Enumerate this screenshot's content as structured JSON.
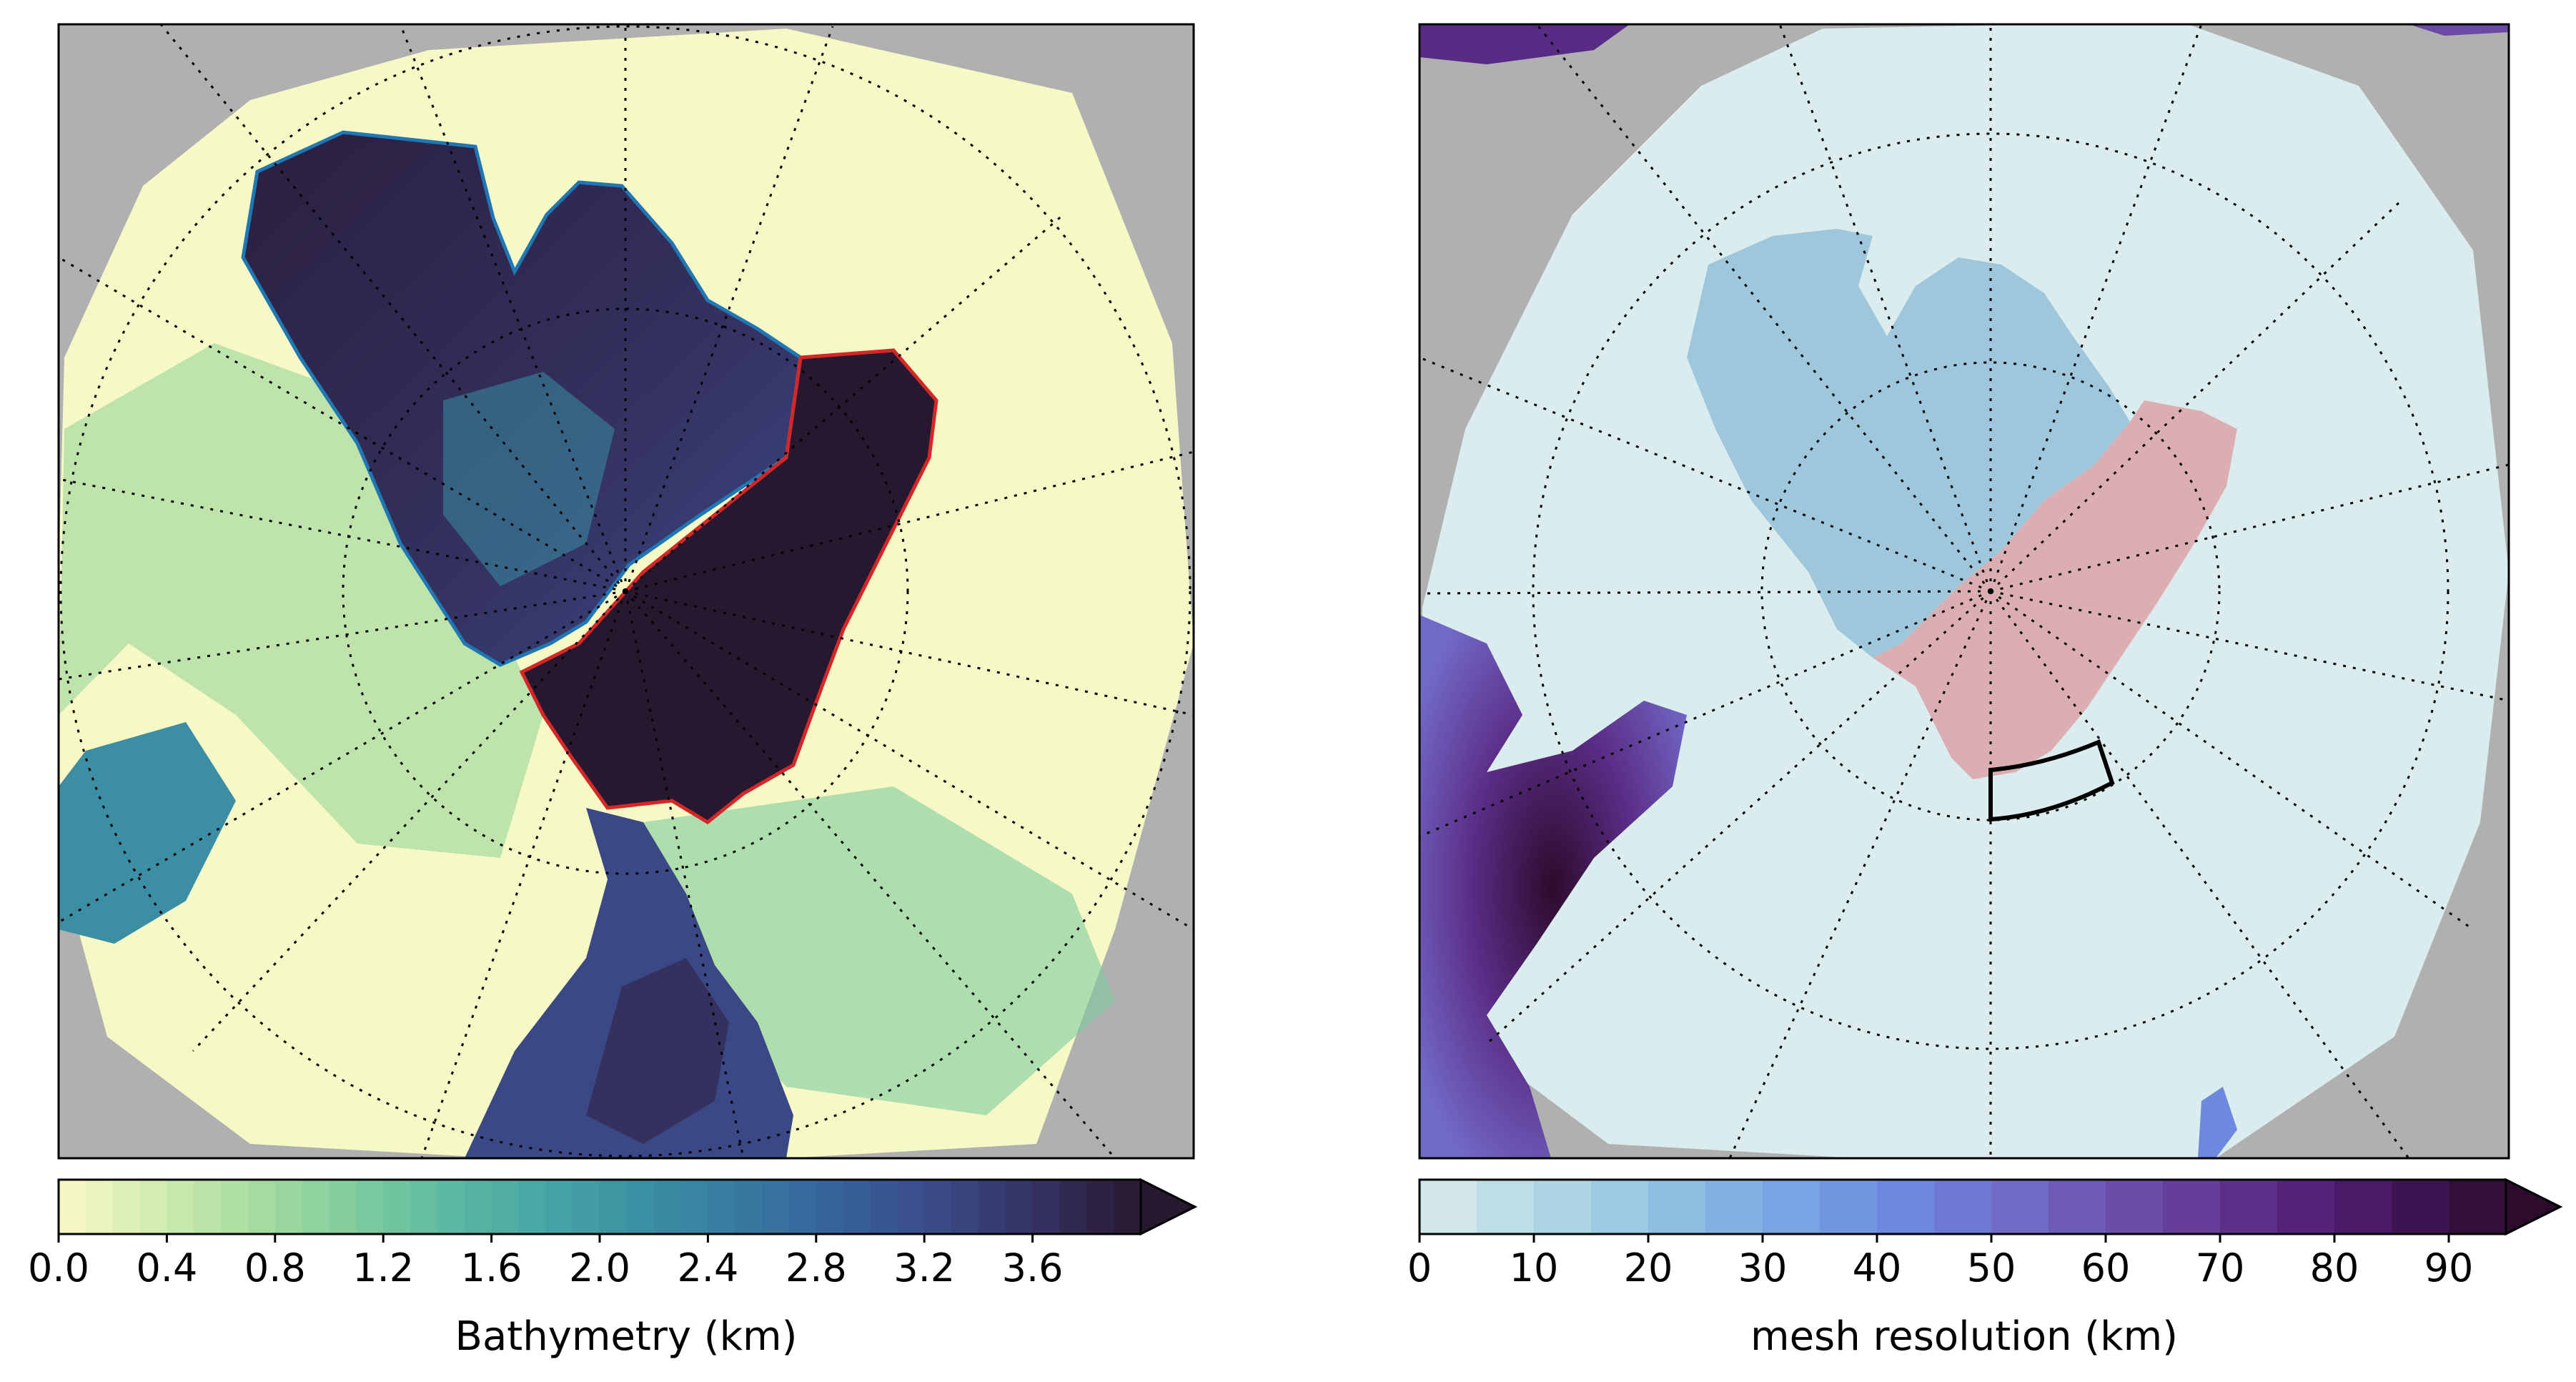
{
  "panels": [
    {
      "id": "bathymetry",
      "colorbar": {
        "label": "Bathymetry (km)",
        "min": 0.0,
        "max": 4.0,
        "levels": 40,
        "extend": "max",
        "ticks": [
          "0.0",
          "0.4",
          "0.8",
          "1.2",
          "1.6",
          "2.0",
          "2.4",
          "2.8",
          "3.2",
          "3.6"
        ],
        "tick_values": [
          0.0,
          0.4,
          0.8,
          1.2,
          1.6,
          2.0,
          2.4,
          2.8,
          3.2,
          3.6
        ],
        "colors": [
          "#fbf9c5",
          "#d1ecb1",
          "#a7dca0",
          "#7fcc9e",
          "#5cb9a2",
          "#46a4a4",
          "#3b8ea3",
          "#3778a0",
          "#37609a",
          "#3a4886",
          "#34315f",
          "#28182f"
        ]
      },
      "outlines": [
        {
          "name": "amerasian-basin-outline",
          "color": "#1f77b4"
        },
        {
          "name": "eurasian-basin-outline",
          "color": "#d62728"
        }
      ]
    },
    {
      "id": "mesh-resolution",
      "colorbar": {
        "label": "mesh resolution (km)",
        "min": 0,
        "max": 95,
        "levels": 19,
        "extend": "max",
        "ticks": [
          "0",
          "10",
          "20",
          "30",
          "40",
          "50",
          "60",
          "70",
          "80",
          "90"
        ],
        "tick_values": [
          0,
          10,
          20,
          30,
          40,
          50,
          60,
          70,
          80,
          90
        ],
        "colors": [
          "#dbecee",
          "#b2d8e4",
          "#91c2e1",
          "#7aa6e4",
          "#6d89df",
          "#7169c6",
          "#6b4aa6",
          "#5a2b84",
          "#451660",
          "#2d0b2b"
        ]
      },
      "regions": [
        {
          "name": "amerasian-basin-region",
          "color": "#9fc7dc"
        },
        {
          "name": "eurasian-basin-region",
          "color": "#dbafb2"
        },
        {
          "name": "section-box",
          "color": "#000000"
        }
      ]
    }
  ],
  "colors": {
    "land": "#b0b0b0",
    "shelf_left": "#f6f8c6",
    "ocean_right": "#dbecee",
    "grid": "#000000"
  }
}
